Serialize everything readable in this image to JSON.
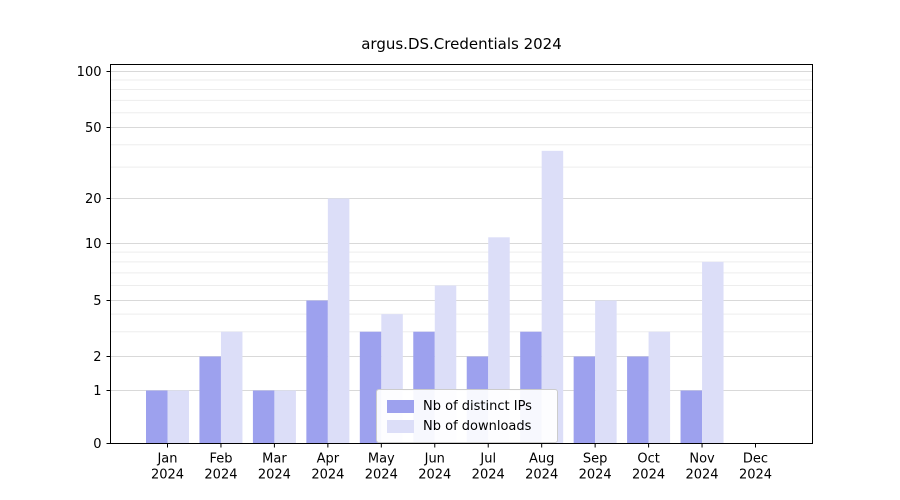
{
  "chart_data": {
    "type": "bar",
    "title": "argus.DS.Credentials 2024",
    "x_axis": {
      "months": [
        "Jan",
        "Feb",
        "Mar",
        "Apr",
        "May",
        "Jun",
        "Jul",
        "Aug",
        "Sep",
        "Oct",
        "Nov",
        "Dec"
      ],
      "year": "2024"
    },
    "y_axis": {
      "scale": "symlog",
      "ticks": [
        0,
        1,
        2,
        5,
        10,
        20,
        50,
        100
      ],
      "ylim": [
        0,
        110
      ]
    },
    "series": [
      {
        "name": "Nb of distinct IPs",
        "color": "#9da1ee",
        "values": [
          1,
          2,
          1,
          5,
          3,
          3,
          2,
          3,
          2,
          2,
          1,
          0
        ]
      },
      {
        "name": "Nb of downloads",
        "color": "#dcdef8",
        "values": [
          1,
          3,
          1,
          20,
          4,
          6,
          11,
          37,
          5,
          3,
          8,
          0
        ]
      }
    ],
    "legend": {
      "position": "lower center"
    },
    "grid": true,
    "colors": {
      "grid_major": "#d9d9d9",
      "grid_minor": "#ededed",
      "spine": "#000000",
      "text": "#000000"
    }
  }
}
